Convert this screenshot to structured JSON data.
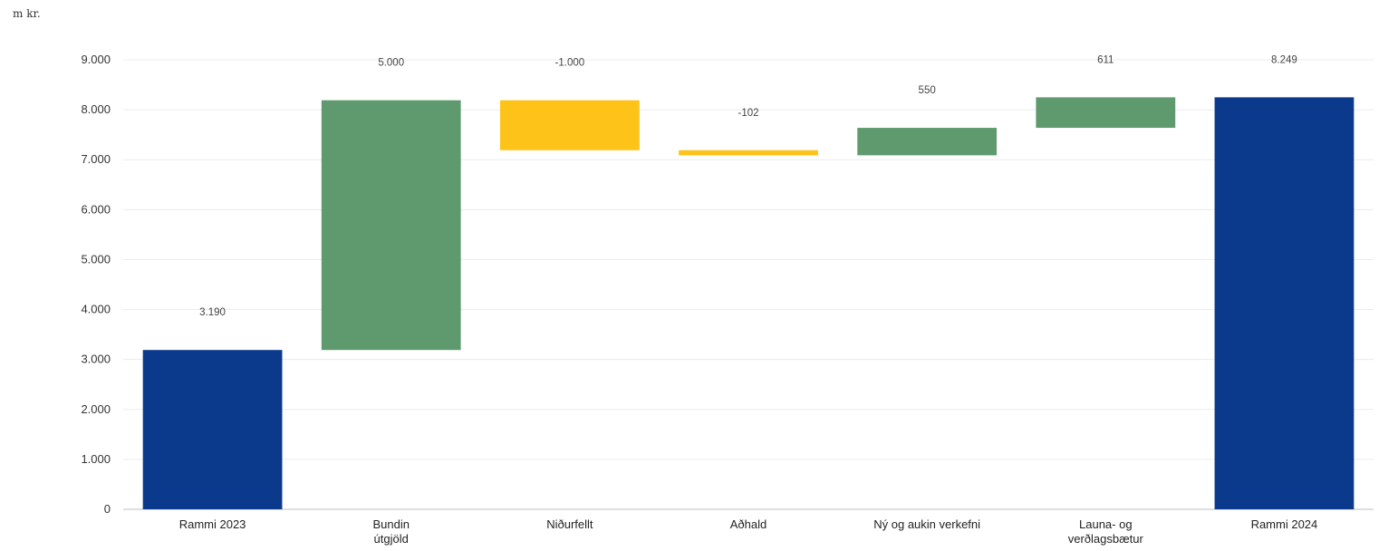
{
  "unit_label": "m kr.",
  "chart_data": {
    "type": "waterfall",
    "title": "",
    "xlabel": "",
    "ylabel": "",
    "ylim": [
      0,
      9000
    ],
    "y_ticks": [
      "0",
      "1.000",
      "2.000",
      "3.000",
      "4.000",
      "5.000",
      "6.000",
      "7.000",
      "8.000",
      "9.000"
    ],
    "y_tick_values": [
      0,
      1000,
      2000,
      3000,
      4000,
      5000,
      6000,
      7000,
      8000,
      9000
    ],
    "grid": true,
    "legend": "none",
    "colors": {
      "total": "#0b3a8c",
      "increase": "#5e9a6d",
      "decrease": "#fdc319"
    },
    "bars": [
      {
        "category": [
          "Rammi 2023"
        ],
        "kind": "total",
        "start": 0,
        "end": 3190,
        "label": "3.190"
      },
      {
        "category": [
          "Bundin",
          "útgjöld"
        ],
        "kind": "increase",
        "start": 3190,
        "end": 8190,
        "label": "5.000"
      },
      {
        "category": [
          "Niðurfellt"
        ],
        "kind": "decrease",
        "start": 8190,
        "end": 7190,
        "label": "-1.000"
      },
      {
        "category": [
          "Aðhald"
        ],
        "kind": "decrease",
        "start": 7190,
        "end": 7088,
        "label": "-102"
      },
      {
        "category": [
          "Ný og aukin verkefni"
        ],
        "kind": "increase",
        "start": 7088,
        "end": 7638,
        "label": "550"
      },
      {
        "category": [
          "Launa- og",
          "verðlagsbætur"
        ],
        "kind": "increase",
        "start": 7638,
        "end": 8249,
        "label": "611"
      },
      {
        "category": [
          "Rammi 2024"
        ],
        "kind": "total",
        "start": 0,
        "end": 8249,
        "label": "8.249"
      }
    ]
  }
}
